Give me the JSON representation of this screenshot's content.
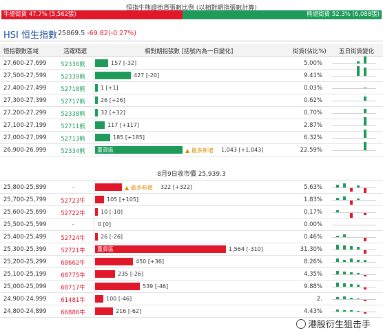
{
  "header": {
    "caption": "恒指牛熊證街貨張數比例 (以相對期指張數計算)",
    "bull_label": "牛證街貨 47.7% (5,562張)",
    "bear_label": "熊證街貨 52.3% (6,088張)",
    "bull_share": 0.477
  },
  "index": {
    "title": "HSI 恒生指數",
    "value": "25869.5",
    "change": "-69.82(-0.27%)"
  },
  "columns": {
    "range": "恒指觀數區域",
    "code": "活躍精選",
    "contracts": "相對期指張數 [括號內為一日變化]",
    "share": "街貨(佔比%)",
    "trend": "五日街貨變化"
  },
  "close_label": "8月9日收市價 25,939.3",
  "colors": {
    "bull": "#e0182a",
    "bear": "#1e9b5b",
    "note": "#e08a00"
  },
  "bear_rows": [
    {
      "range": "27,600-27,699",
      "code": "52336熊",
      "qty": "157 [-32]",
      "value": 157,
      "share": "5.00%",
      "trend": [
        0,
        0,
        0,
        3,
        10
      ]
    },
    {
      "range": "27,500-27,599",
      "code": "52339熊",
      "qty": "427 [-20]",
      "value": 427,
      "share": "9.41%",
      "trend": [
        0,
        0,
        0,
        14,
        12
      ]
    },
    {
      "range": "27,400-27,499",
      "code": "52718熊",
      "qty": "1 [+1]",
      "value": 1,
      "share": "0.03%",
      "trend": [
        0,
        0,
        0,
        0,
        1
      ]
    },
    {
      "range": "27,300-27,399",
      "code": "52717熊",
      "qty": "26 [+26]",
      "value": 26,
      "share": "0.62%",
      "trend": [
        0,
        0,
        0,
        0,
        6
      ]
    },
    {
      "range": "27,200-27,299",
      "code": "52338熊",
      "qty": "32 [+32]",
      "value": 32,
      "share": "0.70%",
      "trend": [
        0,
        0,
        0,
        0,
        6
      ]
    },
    {
      "range": "27,100-27,199",
      "code": "52711熊",
      "qty": "117 [+117]",
      "value": 117,
      "share": "2.87%",
      "trend": [
        0,
        0,
        0,
        0,
        12
      ]
    },
    {
      "range": "27,000-27,099",
      "code": "52713熊",
      "qty": "185 [+185]",
      "value": 185,
      "share": "6.32%",
      "trend": [
        0,
        0,
        0,
        0,
        12
      ]
    },
    {
      "range": "26,900-26,999",
      "code": "52334熊",
      "label": "重貨區",
      "note": "▲ 最多新增",
      "qty": "1,043 [+1,043]",
      "value": 1043,
      "share": "22.59%",
      "trend": [
        0,
        0,
        0,
        0,
        12
      ]
    }
  ],
  "bull_rows": [
    {
      "range": "25,800-25,899",
      "code": "-",
      "note": "▲ 最多新增",
      "qty": "322 [+322]",
      "value": 322,
      "share": "5.63%",
      "trend": [
        4,
        6,
        -5,
        3,
        -7
      ]
    },
    {
      "range": "25,700-25,799",
      "code": "52723牛",
      "qty": "105 [+105]",
      "value": 105,
      "share": "1.83%",
      "trend": [
        3,
        5,
        -6,
        2,
        0
      ]
    },
    {
      "range": "25,600-25,699",
      "code": "52722牛",
      "qty": "10 [-10]",
      "value": 10,
      "share": "0.17%",
      "trend": [
        3,
        0,
        -7,
        0,
        -3
      ]
    },
    {
      "range": "25,500-25,599",
      "code": "-",
      "qty": "0 [0]",
      "value": 0,
      "share": "0.00%",
      "trend": [
        0,
        0,
        0,
        0,
        0
      ]
    },
    {
      "range": "25,400-25,499",
      "code": "52724牛",
      "qty": "26 [-26]",
      "value": 26,
      "share": "0.46%",
      "trend": [
        2,
        4,
        0,
        0,
        -5
      ]
    },
    {
      "range": "25,300-25,399",
      "code": "52721牛",
      "label": "重貨區",
      "qty": "1,564 [-310]",
      "value": 1564,
      "share": "31.30%",
      "trend": [
        7,
        6,
        5,
        4,
        -5
      ]
    },
    {
      "range": "25,200-25,299",
      "code": "68662牛",
      "qty": "450 [+36]",
      "value": 450,
      "share": "8.26%",
      "trend": [
        5,
        3,
        5,
        3,
        3
      ]
    },
    {
      "range": "25,100-25,199",
      "code": "68775牛",
      "qty": "235 [-26]",
      "value": 235,
      "share": "4.35%",
      "trend": [
        5,
        4,
        3,
        2,
        -2
      ]
    },
    {
      "range": "25,000-25,099",
      "code": "68717牛",
      "qty": "539 [-46]",
      "value": 539,
      "share": "9.88%",
      "trend": [
        6,
        5,
        4,
        3,
        -3
      ]
    },
    {
      "range": "24,900-24,999",
      "code": "61481牛",
      "qty": "100 [-46]",
      "value": 100,
      "share": "2.",
      "trend": [
        3,
        4,
        2,
        1,
        -2
      ]
    },
    {
      "range": "24,800-24,899",
      "code": "66886牛",
      "qty": "216 [-62]",
      "value": 216,
      "share": "4.43%",
      "trend": [
        3,
        2,
        2,
        1,
        -2
      ]
    }
  ],
  "watermark": "港股衍生狙击手"
}
